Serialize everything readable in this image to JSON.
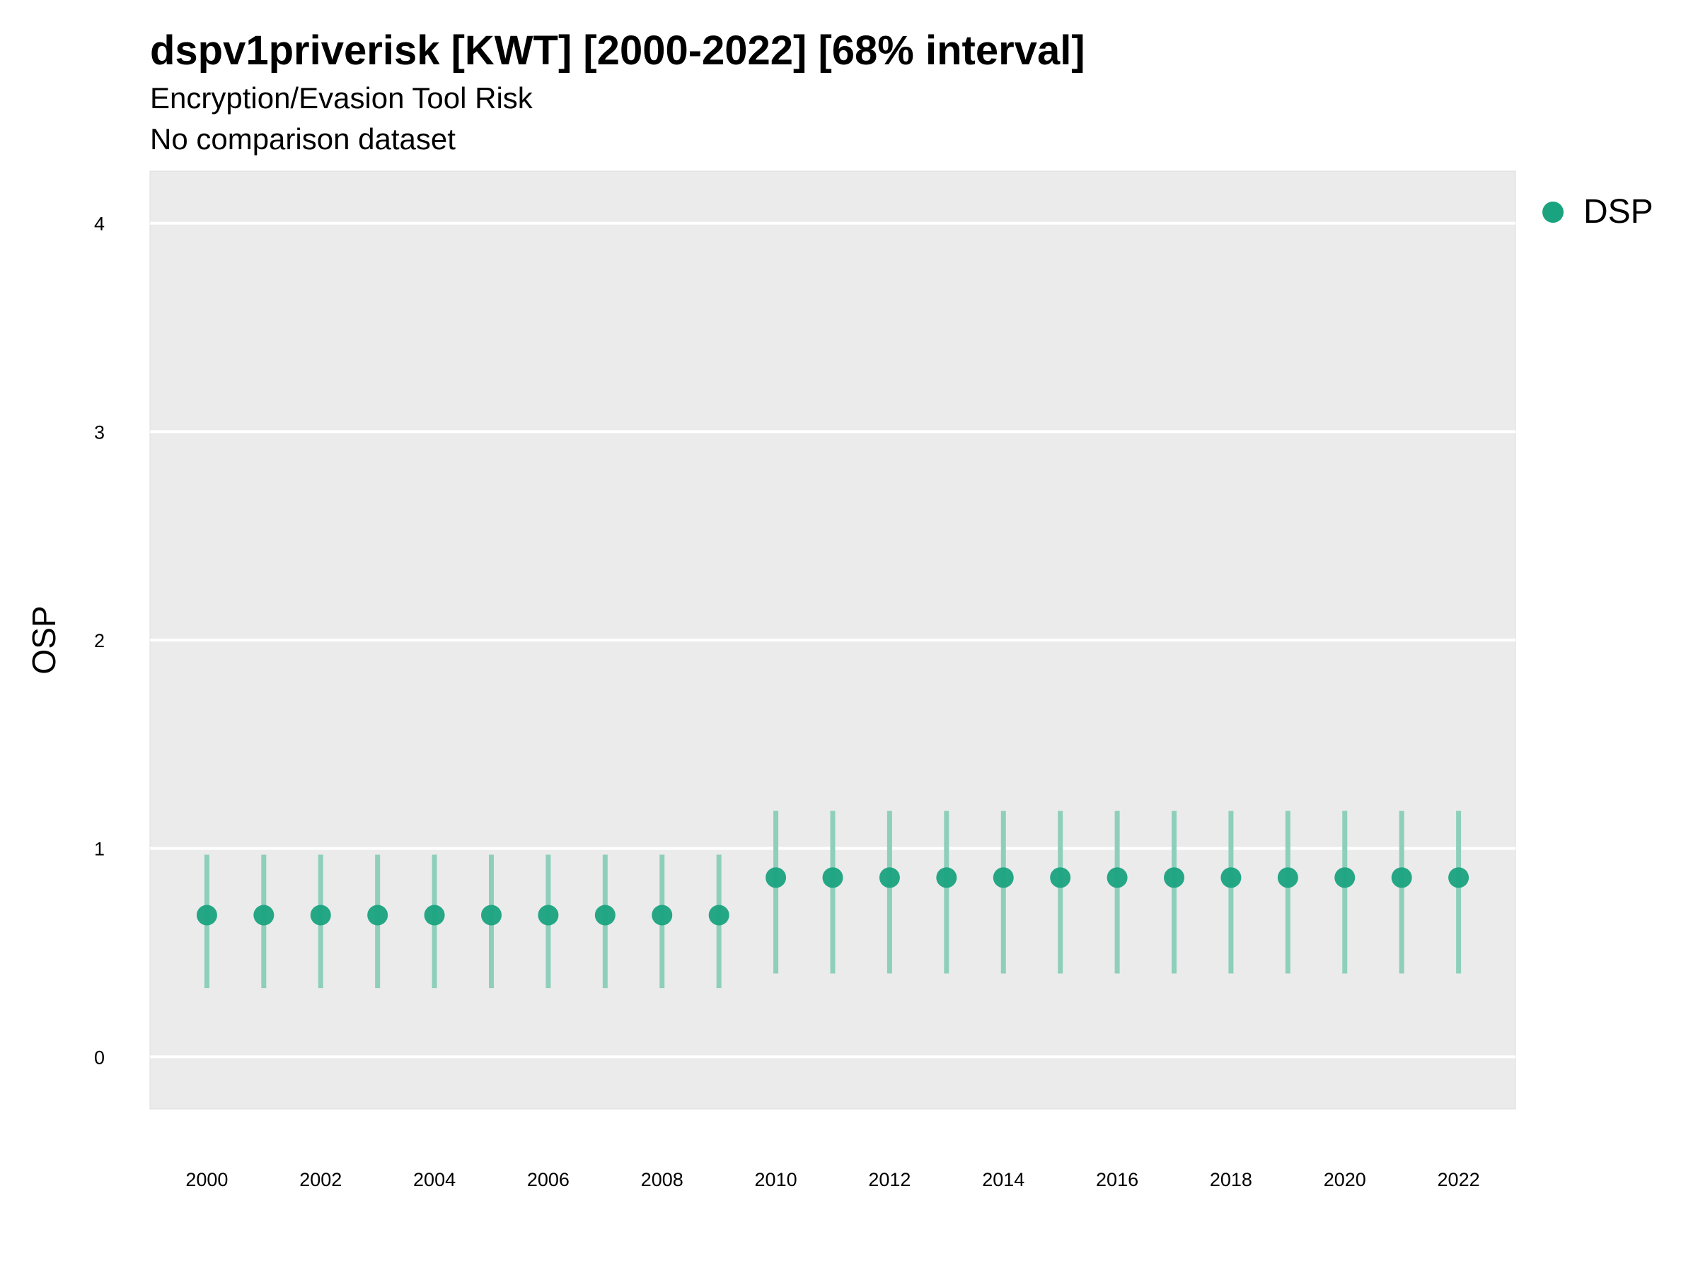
{
  "title": "dspv1priverisk [KWT] [2000-2022] [68% interval]",
  "subtitle": "Encryption/Evasion Tool Risk",
  "subtitle2": "No comparison dataset",
  "colors": {
    "panel_bg": "#ebebeb",
    "grid": "#ffffff",
    "point": "#1aa37f",
    "interval": "#8ecfbb"
  },
  "chart_data": {
    "type": "scatter",
    "title": "dspv1priverisk [KWT] [2000-2022] [68% interval]",
    "xlabel": "",
    "ylabel": "OSP",
    "xlim": [
      1999,
      2023
    ],
    "ylim": [
      -0.25,
      4.25
    ],
    "x_ticks": [
      2000,
      2002,
      2004,
      2006,
      2008,
      2010,
      2012,
      2014,
      2016,
      2018,
      2020,
      2022
    ],
    "y_ticks": [
      0,
      1,
      2,
      3,
      4
    ],
    "grid": true,
    "legend_position": "right",
    "series": [
      {
        "name": "DSP",
        "x": [
          2000,
          2001,
          2002,
          2003,
          2004,
          2005,
          2006,
          2007,
          2008,
          2009,
          2010,
          2011,
          2012,
          2013,
          2014,
          2015,
          2016,
          2017,
          2018,
          2019,
          2020,
          2021,
          2022
        ],
        "y": [
          0.68,
          0.68,
          0.68,
          0.68,
          0.68,
          0.68,
          0.68,
          0.68,
          0.68,
          0.68,
          0.86,
          0.86,
          0.86,
          0.86,
          0.86,
          0.86,
          0.86,
          0.86,
          0.86,
          0.86,
          0.86,
          0.86,
          0.86
        ],
        "lower": [
          0.33,
          0.33,
          0.33,
          0.33,
          0.33,
          0.33,
          0.33,
          0.33,
          0.33,
          0.33,
          0.4,
          0.4,
          0.4,
          0.4,
          0.4,
          0.4,
          0.4,
          0.4,
          0.4,
          0.4,
          0.4,
          0.4,
          0.4
        ],
        "upper": [
          0.97,
          0.97,
          0.97,
          0.97,
          0.97,
          0.97,
          0.97,
          0.97,
          0.97,
          0.97,
          1.18,
          1.18,
          1.18,
          1.18,
          1.18,
          1.18,
          1.18,
          1.18,
          1.18,
          1.18,
          1.18,
          1.18,
          1.18
        ]
      }
    ]
  }
}
